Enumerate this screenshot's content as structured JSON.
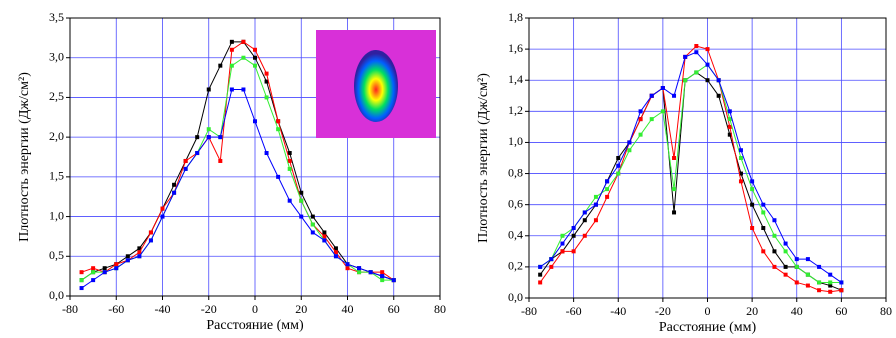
{
  "chart_data": [
    {
      "type": "line",
      "x_label": "Расстояние (мм)",
      "y_label": "Плотность энергии (Дж/см²)",
      "x": [
        -75,
        -70,
        -65,
        -60,
        -55,
        -50,
        -45,
        -40,
        -35,
        -30,
        -25,
        -20,
        -15,
        -10,
        -5,
        0,
        5,
        10,
        15,
        20,
        25,
        30,
        35,
        40,
        45,
        50,
        55,
        60
      ],
      "xlim": [
        -80,
        80
      ],
      "xticks": [
        -80,
        -60,
        -40,
        -20,
        0,
        20,
        40,
        60,
        80
      ],
      "ylim": [
        0,
        3.5
      ],
      "yticks": [
        {
          "value": 0,
          "label": "0,0"
        },
        {
          "value": 0.5,
          "label": "0,5"
        },
        {
          "value": 1,
          "label": "1,0"
        },
        {
          "value": 1.5,
          "label": "1,5"
        },
        {
          "value": 2,
          "label": "2,0"
        },
        {
          "value": 2.5,
          "label": "2,5"
        },
        {
          "value": 3,
          "label": "3,0"
        },
        {
          "value": 3.5,
          "label": "3,5"
        }
      ],
      "grid": true,
      "series": [
        {
          "color": "#000000",
          "values": [
            0.2,
            0.3,
            0.35,
            0.4,
            0.5,
            0.6,
            0.8,
            1.1,
            1.4,
            1.7,
            2.0,
            2.6,
            2.9,
            3.2,
            3.2,
            3.0,
            2.7,
            2.2,
            1.8,
            1.3,
            1.0,
            0.8,
            0.6,
            0.4,
            0.35,
            0.3,
            0.25,
            0.2
          ]
        },
        {
          "color": "#ff0000",
          "values": [
            0.3,
            0.35,
            0.3,
            0.4,
            0.45,
            0.55,
            0.8,
            1.1,
            1.3,
            1.7,
            1.8,
            2.0,
            1.7,
            3.1,
            3.2,
            3.1,
            2.8,
            2.2,
            1.7,
            1.2,
            0.9,
            0.75,
            0.55,
            0.35,
            0.3,
            0.3,
            0.3,
            0.2
          ]
        },
        {
          "color": "#33ee33",
          "values": [
            0.2,
            0.3,
            0.3,
            0.35,
            0.45,
            0.5,
            0.7,
            1.0,
            1.3,
            1.6,
            1.8,
            2.1,
            2.0,
            2.9,
            3.0,
            2.9,
            2.5,
            2.1,
            1.6,
            1.2,
            0.9,
            0.7,
            0.5,
            0.4,
            0.3,
            0.3,
            0.2,
            0.2
          ]
        },
        {
          "color": "#0000ff",
          "values": [
            0.1,
            0.2,
            0.3,
            0.35,
            0.45,
            0.5,
            0.7,
            1.0,
            1.3,
            1.6,
            1.8,
            2.0,
            2.0,
            2.6,
            2.6,
            2.2,
            1.8,
            1.5,
            1.2,
            1.0,
            0.8,
            0.7,
            0.5,
            0.4,
            0.35,
            0.3,
            0.25,
            0.2
          ]
        }
      ]
    },
    {
      "type": "line",
      "x_label": "Расстояние (мм)",
      "y_label": "Плотность энергии (Дж/см²)",
      "x": [
        -75,
        -70,
        -65,
        -60,
        -55,
        -50,
        -45,
        -40,
        -35,
        -30,
        -25,
        -20,
        -15,
        -10,
        -5,
        0,
        5,
        10,
        15,
        20,
        25,
        30,
        35,
        40,
        45,
        50,
        55,
        60
      ],
      "xlim": [
        -80,
        80
      ],
      "xticks": [
        -80,
        -60,
        -40,
        -20,
        0,
        20,
        40,
        60,
        80
      ],
      "ylim": [
        0,
        1.8
      ],
      "yticks": [
        {
          "value": 0,
          "label": "0,0"
        },
        {
          "value": 0.2,
          "label": "0,2"
        },
        {
          "value": 0.4,
          "label": "0,4"
        },
        {
          "value": 0.6,
          "label": "0,6"
        },
        {
          "value": 0.8,
          "label": "0,8"
        },
        {
          "value": 1,
          "label": "1,0"
        },
        {
          "value": 1.2,
          "label": "1,2"
        },
        {
          "value": 1.4,
          "label": "1,4"
        },
        {
          "value": 1.6,
          "label": "1,6"
        },
        {
          "value": 1.8,
          "label": "1,8"
        }
      ],
      "grid": true,
      "series": [
        {
          "color": "#000000",
          "values": [
            0.15,
            0.25,
            0.3,
            0.4,
            0.5,
            0.6,
            0.75,
            0.9,
            1.0,
            1.15,
            1.3,
            1.35,
            0.55,
            1.4,
            1.45,
            1.4,
            1.3,
            1.05,
            0.8,
            0.6,
            0.45,
            0.3,
            0.2,
            0.2,
            0.15,
            0.1,
            0.08,
            0.05
          ]
        },
        {
          "color": "#ff0000",
          "values": [
            0.1,
            0.2,
            0.3,
            0.3,
            0.4,
            0.5,
            0.65,
            0.8,
            1.0,
            1.15,
            1.3,
            1.35,
            0.9,
            1.55,
            1.62,
            1.6,
            1.4,
            1.1,
            0.75,
            0.45,
            0.3,
            0.2,
            0.15,
            0.1,
            0.08,
            0.05,
            0.04,
            0.05
          ]
        },
        {
          "color": "#33ee33",
          "values": [
            0.2,
            0.25,
            0.4,
            0.45,
            0.55,
            0.65,
            0.7,
            0.8,
            0.95,
            1.05,
            1.15,
            1.2,
            0.7,
            1.4,
            1.45,
            1.5,
            1.4,
            1.15,
            0.9,
            0.7,
            0.55,
            0.4,
            0.3,
            0.2,
            0.15,
            0.1,
            0.1,
            0.1
          ]
        },
        {
          "color": "#0000ff",
          "values": [
            0.2,
            0.25,
            0.35,
            0.45,
            0.55,
            0.6,
            0.75,
            0.85,
            1.0,
            1.2,
            1.3,
            1.35,
            1.3,
            1.55,
            1.58,
            1.5,
            1.4,
            1.2,
            0.95,
            0.75,
            0.6,
            0.5,
            0.35,
            0.25,
            0.25,
            0.2,
            0.15,
            0.1
          ]
        }
      ]
    }
  ]
}
